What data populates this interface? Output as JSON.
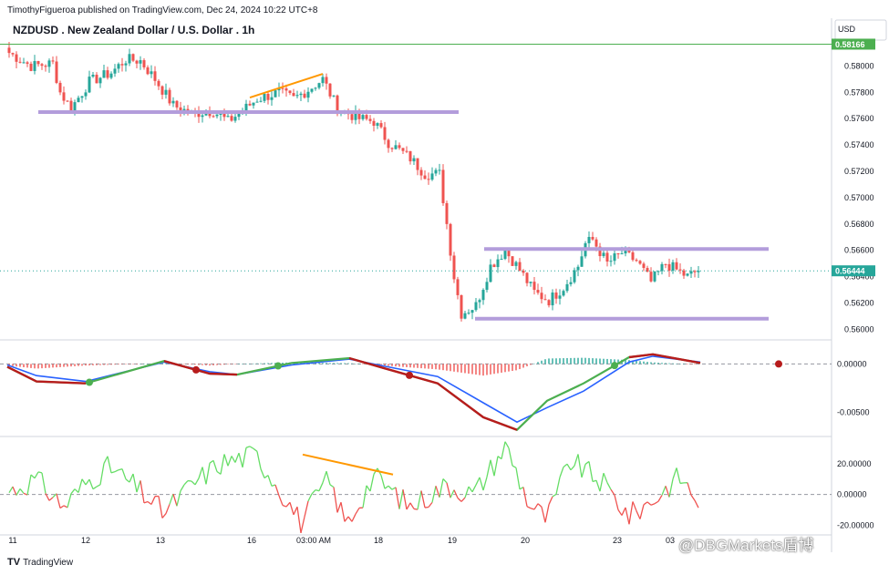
{
  "header": {
    "publisher": "TimothyFigueroa published on TradingView.com, Dec 24, 2024 10:22 UTC+8",
    "symbol_title": "NZDUSD . New Zealand Dollar / U.S. Dollar . 1h",
    "currency": "USD"
  },
  "footer": {
    "logo_mark": "TV",
    "logo_text": "TradingView"
  },
  "watermark": "@DBGMarkets盾博",
  "colors": {
    "up": "#26a69a",
    "down": "#ef5350",
    "zone": "#b39ddb",
    "trendline": "#ff9800",
    "last_price_line": "#26a69a",
    "upper_level": "#4caf50",
    "macd_fast": "#4caf50",
    "macd_fast_down": "#b71c1c",
    "macd_signal": "#2962ff",
    "rsi_up": "#66dd66",
    "rsi_down": "#ef5350"
  },
  "chart_data": [
    {
      "type": "candlestick",
      "panel": "price",
      "y_ticks": [
        "0.58000",
        "0.57800",
        "0.57600",
        "0.57400",
        "0.57200",
        "0.57000",
        "0.56800",
        "0.56600",
        "0.56400",
        "0.56200",
        "0.56000"
      ],
      "ylim": [
        0.5594,
        0.5819
      ],
      "x_ticks": [
        "11",
        "12",
        "13",
        "16",
        "03:00 AM",
        "18",
        "19",
        "20",
        "23",
        "03"
      ],
      "price_labels": [
        {
          "value": 0.58166,
          "label": "0.58166",
          "kind": "upper_level"
        },
        {
          "value": 0.56444,
          "label": "0.56444",
          "kind": "last_price"
        }
      ],
      "horizontal_zones": [
        {
          "value": 0.5765,
          "from": "11",
          "to": "18"
        },
        {
          "value": 0.5661,
          "from": "19",
          "to": "23+"
        },
        {
          "value": 0.5608,
          "from": "19",
          "to": "23+"
        }
      ],
      "trendlines": [
        {
          "from": {
            "bar": 66,
            "y": 0.5776
          },
          "to": {
            "bar": 86,
            "y": 0.5794
          }
        }
      ],
      "close_path": [
        [
          0,
          0.581
        ],
        [
          6,
          0.58
        ],
        [
          12,
          0.5802
        ],
        [
          14,
          0.578
        ],
        [
          17,
          0.5768
        ],
        [
          22,
          0.5788
        ],
        [
          28,
          0.5795
        ],
        [
          32,
          0.5805
        ],
        [
          36,
          0.5804
        ],
        [
          40,
          0.579
        ],
        [
          45,
          0.577
        ],
        [
          50,
          0.5764
        ],
        [
          56,
          0.5766
        ],
        [
          60,
          0.5758
        ],
        [
          64,
          0.5766
        ],
        [
          68,
          0.5775
        ],
        [
          74,
          0.578
        ],
        [
          78,
          0.5775
        ],
        [
          82,
          0.5782
        ],
        [
          86,
          0.579
        ],
        [
          90,
          0.5768
        ],
        [
          96,
          0.576
        ],
        [
          100,
          0.5758
        ],
        [
          104,
          0.5742
        ],
        [
          110,
          0.573
        ],
        [
          114,
          0.5718
        ],
        [
          118,
          0.5718
        ],
        [
          120,
          0.568
        ],
        [
          122,
          0.564
        ],
        [
          124,
          0.5612
        ],
        [
          128,
          0.5618
        ],
        [
          132,
          0.5648
        ],
        [
          136,
          0.566
        ],
        [
          140,
          0.5645
        ],
        [
          144,
          0.5628
        ],
        [
          148,
          0.5622
        ],
        [
          152,
          0.5632
        ],
        [
          156,
          0.5648
        ],
        [
          158,
          0.5665
        ],
        [
          160,
          0.5668
        ],
        [
          164,
          0.565
        ],
        [
          168,
          0.5658
        ],
        [
          172,
          0.5652
        ],
        [
          176,
          0.5636
        ],
        [
          180,
          0.565
        ],
        [
          186,
          0.564
        ],
        [
          189,
          0.5645
        ]
      ]
    },
    {
      "type": "macd",
      "panel": "macd",
      "y_ticks": [
        "0.00000",
        "-0.00500"
      ],
      "ylim": [
        -0.0072,
        0.0022
      ],
      "dots": [
        {
          "x": 0.1,
          "color": "green"
        },
        {
          "x": 0.23,
          "color": "red"
        },
        {
          "x": 0.33,
          "color": "green"
        },
        {
          "x": 0.49,
          "color": "red"
        },
        {
          "x": 0.74,
          "color": "green"
        },
        {
          "x": 0.94,
          "color": "red"
        }
      ]
    },
    {
      "type": "oscillator",
      "panel": "rsi",
      "y_ticks": [
        "20.00000",
        "0.00000",
        "-20.00000"
      ],
      "ylim": [
        -24,
        36
      ],
      "trendlines": [
        {
          "from": {
            "x": 0.36,
            "y": 26
          },
          "to": {
            "x": 0.47,
            "y": 13
          }
        }
      ]
    }
  ]
}
